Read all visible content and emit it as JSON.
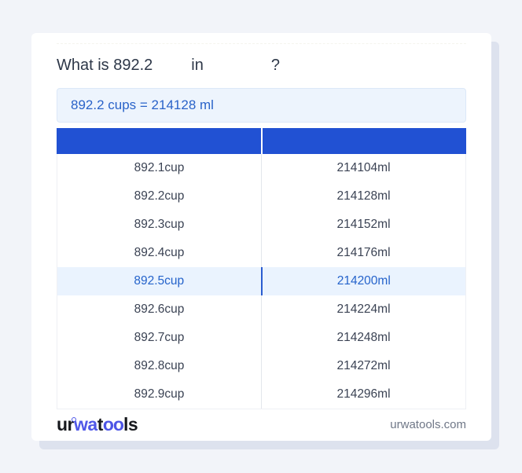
{
  "question": {
    "prefix": "What is 892.2",
    "connector": "in",
    "suffix": "?"
  },
  "result": {
    "text": "892.2 cups = 214128 ml"
  },
  "table": {
    "columns": [
      "",
      ""
    ],
    "highlighted_index": 4,
    "rows": [
      {
        "cup": "892.1cup",
        "ml": "214104ml"
      },
      {
        "cup": "892.2cup",
        "ml": "214128ml"
      },
      {
        "cup": "892.3cup",
        "ml": "214152ml"
      },
      {
        "cup": "892.4cup",
        "ml": "214176ml"
      },
      {
        "cup": "892.5cup",
        "ml": "214200ml"
      },
      {
        "cup": "892.6cup",
        "ml": "214224ml"
      },
      {
        "cup": "892.7cup",
        "ml": "214248ml"
      },
      {
        "cup": "892.8cup",
        "ml": "214272ml"
      },
      {
        "cup": "892.9cup",
        "ml": "214296ml"
      }
    ]
  },
  "footer": {
    "logo": {
      "p1": "ur",
      "p2": "wa",
      "p3": "t",
      "p4": "oo",
      "p5": "ls"
    },
    "site": "urwatools.com"
  },
  "colors": {
    "page_background": "#f2f4f9",
    "card_background": "#ffffff",
    "card_shadow": "#dde2ee",
    "header_blue": "#2151d3",
    "result_box_background": "#edf4fd",
    "result_text": "#2a63c9",
    "highlight_row_background": "#eaf3fe",
    "highlight_text": "#2563cb",
    "row_text": "#3b4354",
    "logo_blue": "#5058e8",
    "footer_text": "#6f7787"
  }
}
